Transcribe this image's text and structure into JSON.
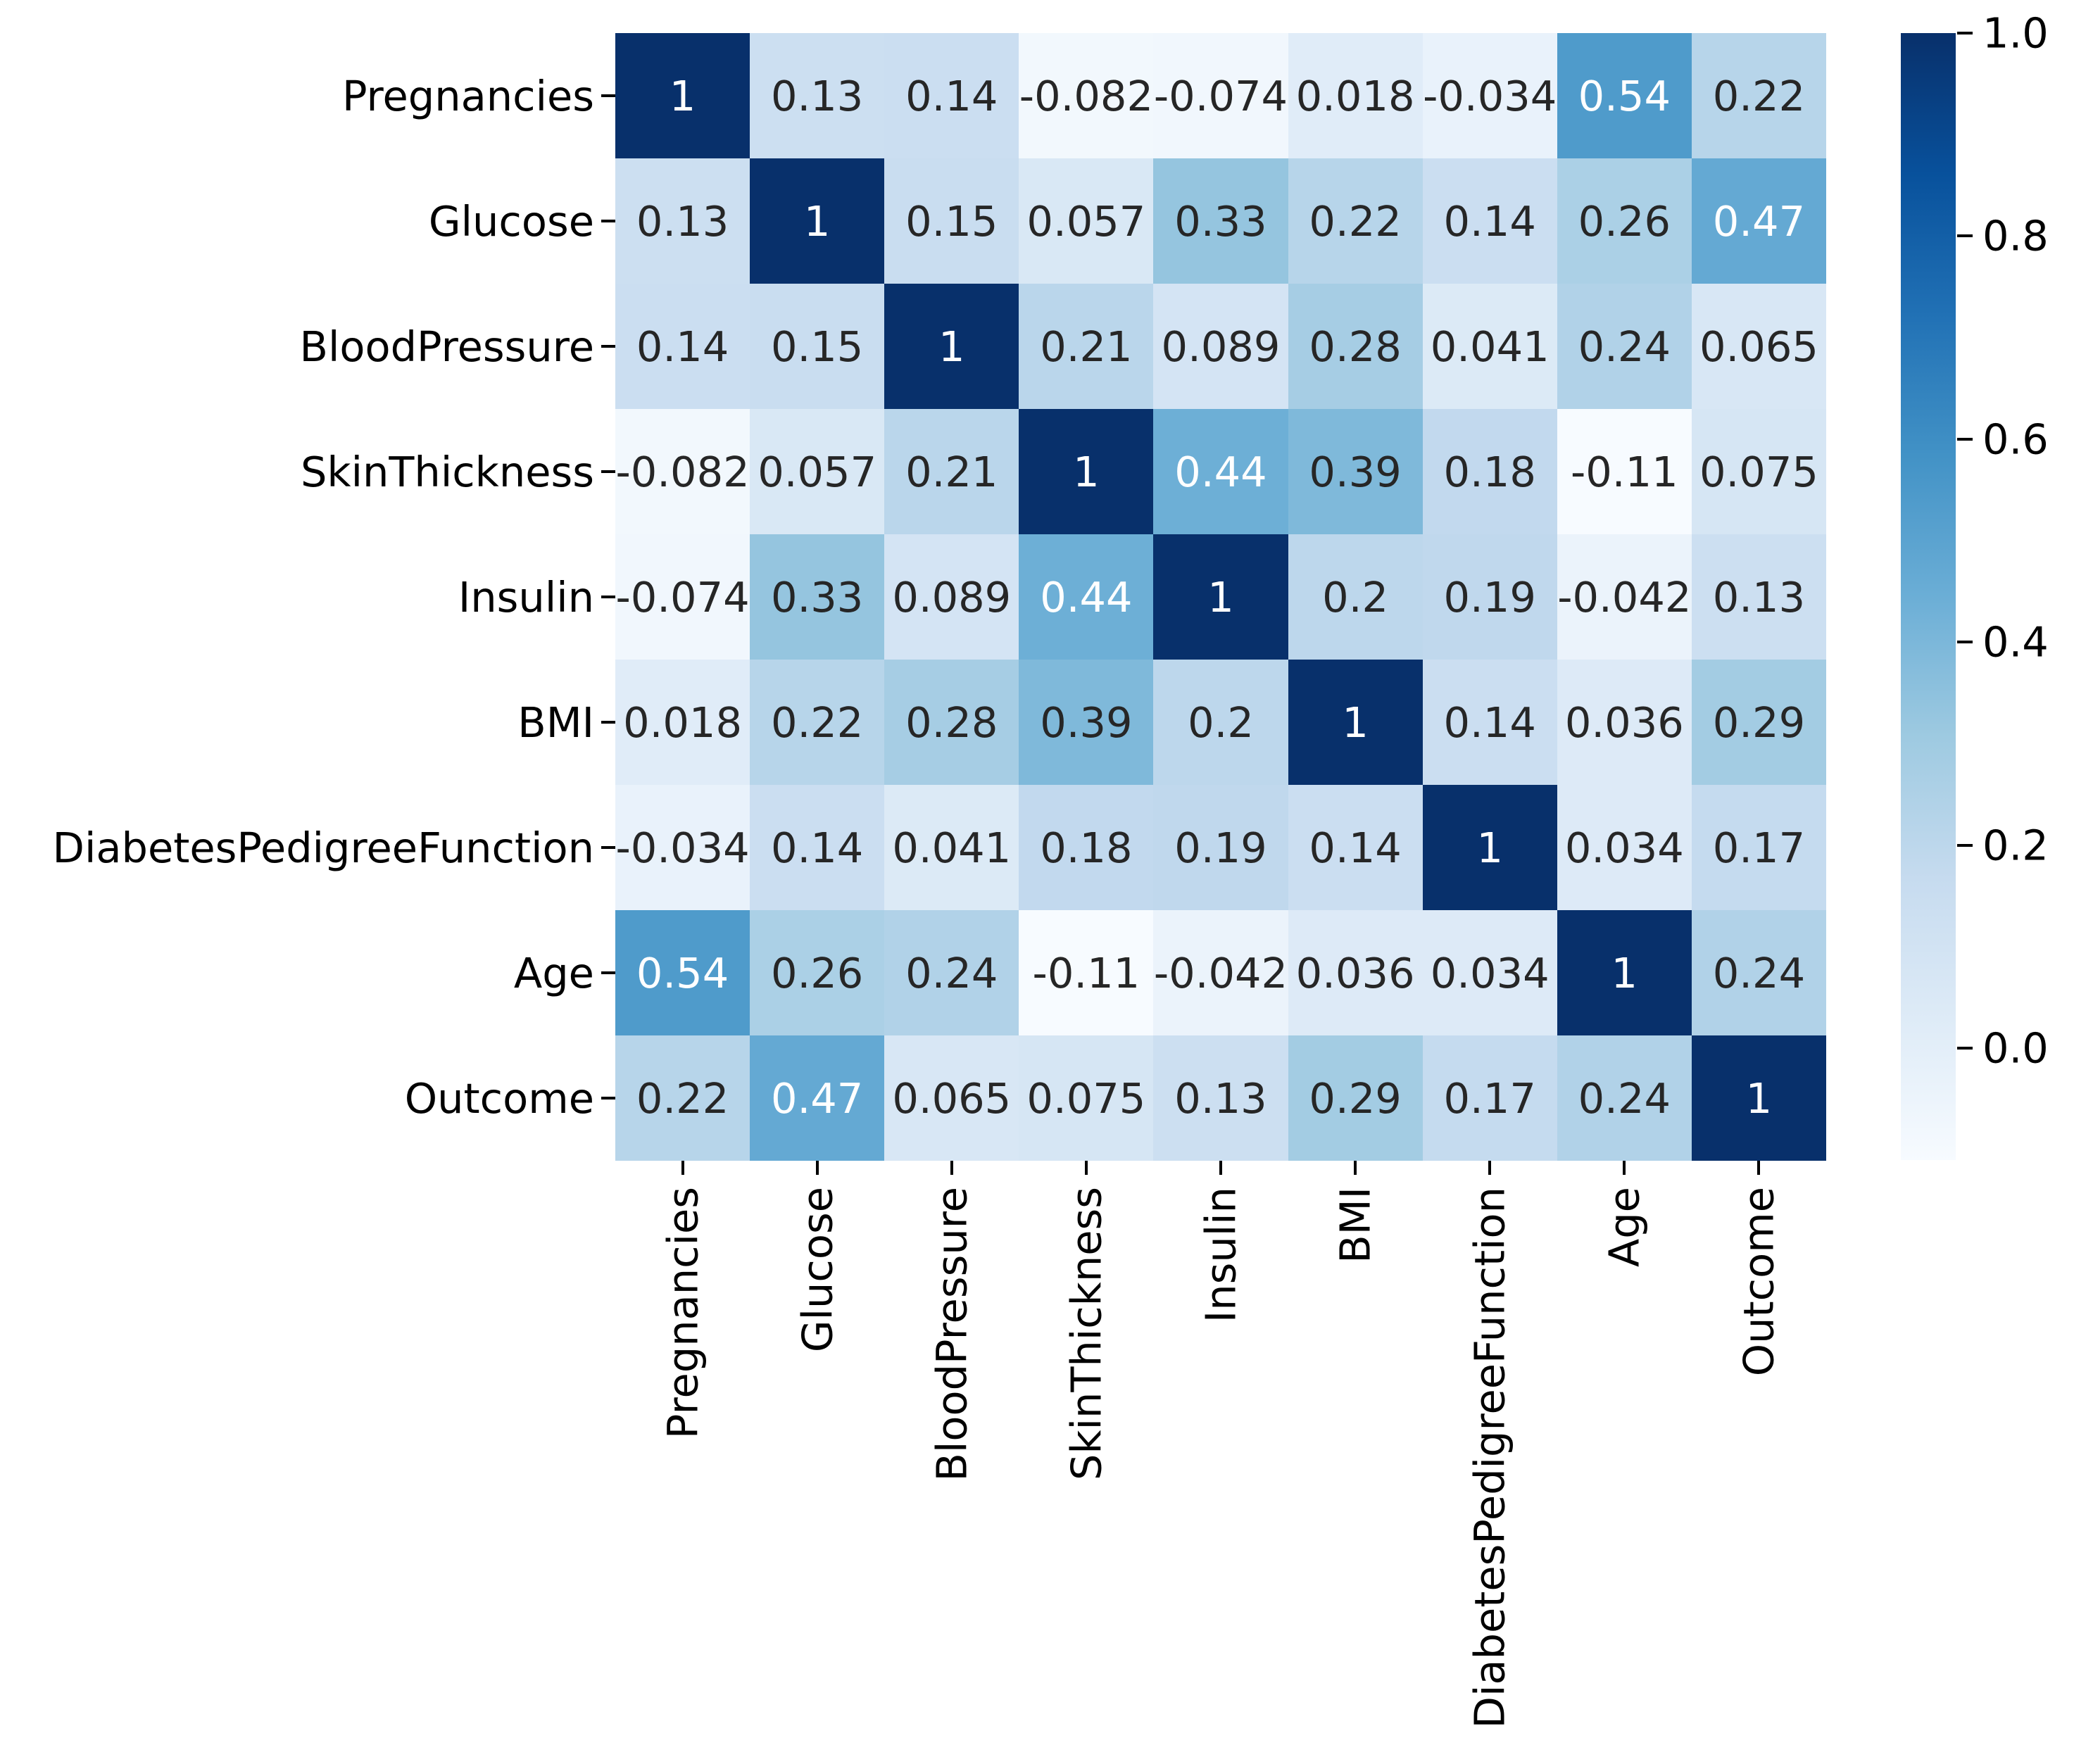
{
  "figure": {
    "background": "#ffffff"
  },
  "chart_data": {
    "type": "heatmap",
    "title": "",
    "xlabel": "",
    "ylabel": "",
    "categories": [
      "Pregnancies",
      "Glucose",
      "BloodPressure",
      "SkinThickness",
      "Insulin",
      "BMI",
      "DiabetesPedigreeFunction",
      "Age",
      "Outcome"
    ],
    "matrix": [
      [
        "1",
        "0.13",
        "0.14",
        "-0.082",
        "-0.074",
        "0.018",
        "-0.034",
        "0.54",
        "0.22"
      ],
      [
        "0.13",
        "1",
        "0.15",
        "0.057",
        "0.33",
        "0.22",
        "0.14",
        "0.26",
        "0.47"
      ],
      [
        "0.14",
        "0.15",
        "1",
        "0.21",
        "0.089",
        "0.28",
        "0.041",
        "0.24",
        "0.065"
      ],
      [
        "-0.082",
        "0.057",
        "0.21",
        "1",
        "0.44",
        "0.39",
        "0.18",
        "-0.11",
        "0.075"
      ],
      [
        "-0.074",
        "0.33",
        "0.089",
        "0.44",
        "1",
        "0.2",
        "0.19",
        "-0.042",
        "0.13"
      ],
      [
        "0.018",
        "0.22",
        "0.28",
        "0.39",
        "0.2",
        "1",
        "0.14",
        "0.036",
        "0.29"
      ],
      [
        "-0.034",
        "0.14",
        "0.041",
        "0.18",
        "0.19",
        "0.14",
        "1",
        "0.034",
        "0.17"
      ],
      [
        "0.54",
        "0.26",
        "0.24",
        "-0.11",
        "-0.042",
        "0.036",
        "0.034",
        "1",
        "0.24"
      ],
      [
        "0.22",
        "0.47",
        "0.065",
        "0.075",
        "0.13",
        "0.29",
        "0.17",
        "0.24",
        "1"
      ]
    ],
    "vmin": -0.11,
    "vmax": 1.0,
    "grid": false,
    "legend_position": "right",
    "colormap": {
      "name": "Blues",
      "anchors": [
        "#f7fbff",
        "#deebf7",
        "#c6dbef",
        "#9ecae1",
        "#6baed6",
        "#4292c6",
        "#2171b5",
        "#08519c",
        "#08306b"
      ]
    },
    "annotation_text_dark": "#262626",
    "annotation_text_light": "#ffffff",
    "colorbar": {
      "ticks": [
        {
          "label": "1.0",
          "value": 1.0
        },
        {
          "label": "0.8",
          "value": 0.8
        },
        {
          "label": "0.6",
          "value": 0.6
        },
        {
          "label": "0.4",
          "value": 0.4
        },
        {
          "label": "0.2",
          "value": 0.2
        },
        {
          "label": "0.0",
          "value": 0.0
        }
      ]
    }
  }
}
